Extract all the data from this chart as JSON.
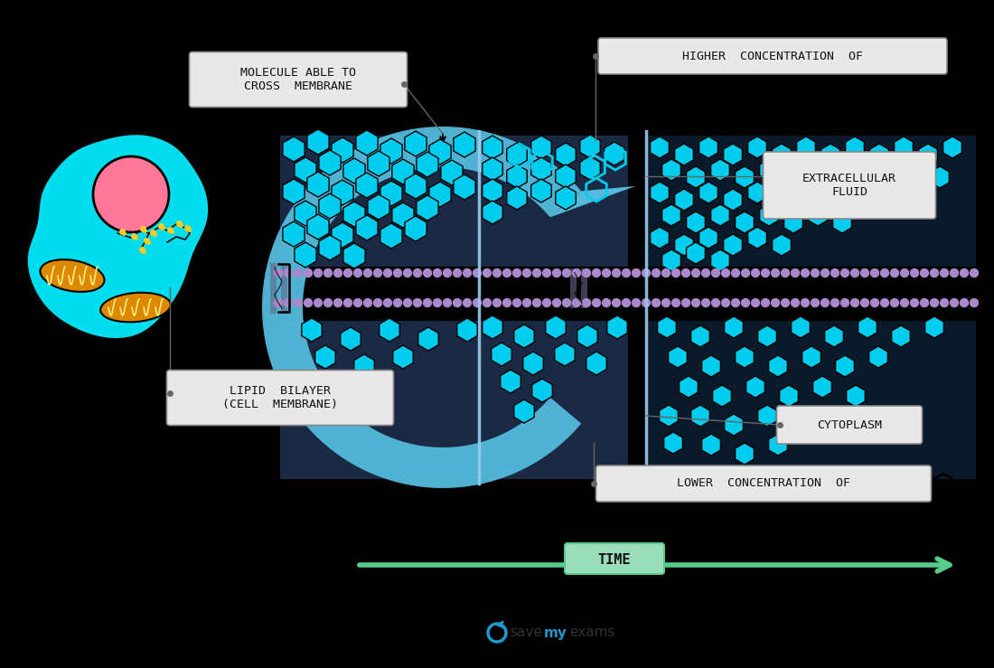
{
  "bg_color": "#000000",
  "cyan": "#00CCEE",
  "blue_main": "#3399CC",
  "blue_light": "#55BBDD",
  "purple": "#AA88CC",
  "cell_cyan": "#00DDEE",
  "pink_nucleus": "#FF7799",
  "orange_mito": "#CC6600",
  "mito_fill": "#DD8800",
  "green_arrow": "#55CC88",
  "green_box": "#99DDBB",
  "label_bg": "#E8E8E8",
  "black": "#000000",
  "white": "#FFFFFF",
  "text_dark": "#111111",
  "vline_color": "#99CCEE",
  "label1": "MOLECULE ABLE TO\nCROSS  MEMBRANE",
  "label3": "EXTRACELLULAR\nFLUID",
  "label4": "LIPID  BILAYER\n(CELL  MEMBRANE)",
  "label6": "CYTOPLASM",
  "label7": "TIME"
}
